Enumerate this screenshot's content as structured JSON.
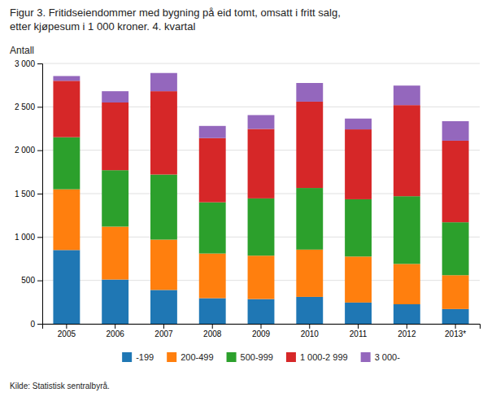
{
  "chart_data": {
    "type": "bar",
    "stacked": true,
    "title": "Figur 3. Fritidseiendommer med bygning på eid tomt, omsatt i fritt salg,\netter kjøpesum i 1 000 kroner. 4. kvartal",
    "ylabel": "Antall",
    "annotations": [
      "Kilde: Statistisk sentralbyrå."
    ],
    "categories": [
      "2005",
      "2006",
      "2007",
      "2008",
      "2009",
      "2010",
      "2011",
      "2012",
      "2013*"
    ],
    "series": [
      {
        "name": "-199",
        "values": [
          850,
          510,
          390,
          295,
          285,
          310,
          245,
          225,
          170
        ]
      },
      {
        "name": "200-499",
        "values": [
          700,
          610,
          580,
          515,
          500,
          545,
          530,
          465,
          390
        ]
      },
      {
        "name": "500-999",
        "values": [
          600,
          650,
          750,
          590,
          660,
          710,
          660,
          780,
          610
        ]
      },
      {
        "name": "1 000-2 999",
        "values": [
          650,
          780,
          960,
          740,
          800,
          995,
          805,
          1050,
          940
        ]
      },
      {
        "name": "3 000-",
        "values": [
          55,
          130,
          210,
          140,
          160,
          215,
          125,
          225,
          225
        ]
      }
    ],
    "ylim": [
      0,
      3000
    ],
    "yticks": [
      0,
      500,
      {
        "value": 1000,
        "label": "1 000"
      },
      {
        "value": 1500,
        "label": "1 500"
      },
      {
        "value": 2000,
        "label": "2 000"
      },
      {
        "value": 2500,
        "label": "2 500"
      },
      {
        "value": 3000,
        "label": "3 000"
      }
    ],
    "grid": true,
    "legend": "bottom"
  }
}
